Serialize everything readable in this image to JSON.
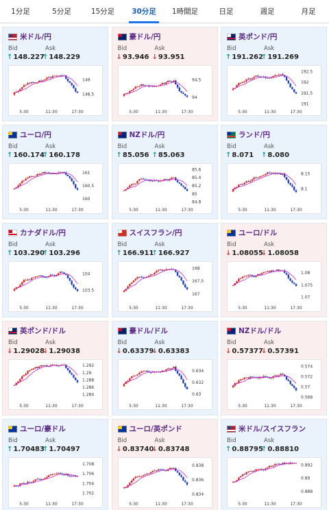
{
  "tabs": [
    {
      "label": "1分足",
      "active": false
    },
    {
      "label": "5分足",
      "active": false
    },
    {
      "label": "15分足",
      "active": false
    },
    {
      "label": "30分足",
      "active": true
    },
    {
      "label": "1時間足",
      "active": false
    },
    {
      "label": "日足",
      "active": false
    },
    {
      "label": "週足",
      "active": false
    },
    {
      "label": "月足",
      "active": false
    }
  ],
  "labels": {
    "bid": "Bid",
    "ask": "Ask"
  },
  "x_ticks": [
    "5:30",
    "11:30",
    "17:30"
  ],
  "colors": {
    "up_arrow": "#1a9d8f",
    "down_arrow": "#d33333",
    "candle_up": "#d62828",
    "candle_down": "#1f3fbf",
    "ma": "#cc22cc"
  },
  "cards": [
    {
      "name": "米ドル/円",
      "flag": "us",
      "bg": "up",
      "direction": "up",
      "bid": "148.227",
      "ask": "148.229",
      "y_ticks": [
        "149",
        "148.5"
      ],
      "y_range": [
        148.1,
        149.35
      ]
    },
    {
      "name": "豪ドル/円",
      "flag": "au",
      "bg": "down",
      "direction": "down",
      "bid": "93.946",
      "ask": "93.951",
      "y_ticks": [
        "94.5",
        "94"
      ],
      "y_range": [
        93.75,
        94.8
      ]
    },
    {
      "name": "英ポンド/円",
      "flag": "gb",
      "bg": "up",
      "direction": "up",
      "bid": "191.262",
      "ask": "191.269",
      "y_ticks": [
        "192.5",
        "192",
        "191.5",
        "191"
      ],
      "y_range": [
        190.9,
        192.6
      ]
    },
    {
      "name": "ユーロ/円",
      "flag": "eu",
      "bg": "up",
      "direction": "up",
      "bid": "160.174",
      "ask": "160.178",
      "y_ticks": [
        "161",
        "160.5",
        "160"
      ],
      "y_range": [
        159.8,
        161.2
      ]
    },
    {
      "name": "NZドル/円",
      "flag": "nz",
      "bg": "up",
      "direction": "up",
      "bid": "85.056",
      "ask": "85.063",
      "y_ticks": [
        "85.6",
        "85.4",
        "85.2",
        "85",
        "84.8"
      ],
      "y_range": [
        84.75,
        85.65
      ]
    },
    {
      "name": "ランド/円",
      "flag": "za",
      "bg": "up",
      "direction": "up",
      "bid": "8.071",
      "ask": "8.080",
      "y_ticks": [
        "8.15",
        "8.1"
      ],
      "y_range": [
        8.05,
        8.17
      ]
    },
    {
      "name": "カナダドル/円",
      "flag": "ca",
      "bg": "up",
      "direction": "up",
      "bid": "103.290",
      "ask": "103.296",
      "y_ticks": [
        "104",
        "103.5"
      ],
      "y_range": [
        103.15,
        104.25
      ]
    },
    {
      "name": "スイスフラン/円",
      "flag": "ch",
      "bg": "up",
      "direction": "up",
      "bid": "166.911",
      "ask": "166.927",
      "y_ticks": [
        "168",
        "167.5",
        "167"
      ],
      "y_range": [
        166.7,
        168.1
      ]
    },
    {
      "name": "ユーロ/ドル",
      "flag": "eu-us",
      "bg": "down",
      "direction": "down",
      "bid": "1.08055",
      "ask": "1.08058",
      "y_ticks": [
        "1.08",
        "1.075",
        "1.07"
      ],
      "y_range": [
        1.068,
        1.083
      ]
    },
    {
      "name": "英ポンド/ドル",
      "flag": "gb-us",
      "bg": "down",
      "direction": "down",
      "bid": "1.29028",
      "ask": "1.29038",
      "y_ticks": [
        "1.292",
        "1.29",
        "1.288",
        "1.286",
        "1.284"
      ],
      "y_range": [
        1.2825,
        1.2925
      ]
    },
    {
      "name": "豪ドル/ドル",
      "flag": "au-us",
      "bg": "up",
      "direction": "down",
      "bid": "0.63379",
      "ask": "0.63383",
      "y_ticks": [
        "0.634",
        "0.632",
        "0.63"
      ],
      "y_range": [
        0.629,
        0.6352
      ]
    },
    {
      "name": "NZドル/ドル",
      "flag": "nz-us",
      "bg": "down",
      "direction": "down",
      "bid": "0.57377",
      "ask": "0.57391",
      "y_ticks": [
        "0.574",
        "0.572",
        "0.57",
        "0.568"
      ],
      "y_range": [
        0.5675,
        0.5745
      ]
    },
    {
      "name": "ユーロ/豪ドル",
      "flag": "eu-au",
      "bg": "up",
      "direction": "up",
      "bid": "1.70483",
      "ask": "1.70497",
      "y_ticks": [
        "1.708",
        "1.706",
        "1.704",
        "1.702"
      ],
      "y_range": [
        1.701,
        1.7085
      ]
    },
    {
      "name": "ユーロ/英ポンド",
      "flag": "eu-gb",
      "bg": "down",
      "direction": "down",
      "bid": "0.83740",
      "ask": "0.83748",
      "y_ticks": [
        "0.838",
        "0.836",
        "0.834"
      ],
      "y_range": [
        0.8335,
        0.8385
      ]
    },
    {
      "name": "米ドル/スイスフラン",
      "flag": "us-ch",
      "bg": "up",
      "direction": "up",
      "bid": "0.88795",
      "ask": "0.88810",
      "y_ticks": [
        "0.892",
        "0.89",
        "0.888"
      ],
      "y_range": [
        0.887,
        0.8925
      ]
    }
  ]
}
